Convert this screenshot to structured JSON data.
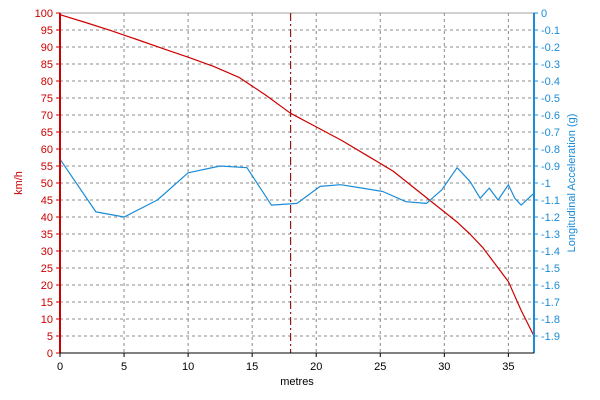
{
  "chart_data": {
    "type": "line",
    "x_axis": {
      "label": "metres",
      "range": [
        0,
        37
      ],
      "ticks": [
        0,
        5,
        10,
        15,
        20,
        25,
        30,
        35
      ],
      "tick_labels": [
        "0",
        "5",
        "10",
        "15",
        "20",
        "25",
        "30",
        "35"
      ]
    },
    "y_left": {
      "label": "km/h",
      "range": [
        0,
        100
      ],
      "ticks": [
        0,
        5,
        10,
        15,
        20,
        25,
        30,
        35,
        40,
        45,
        50,
        55,
        60,
        65,
        70,
        75,
        80,
        85,
        90,
        95,
        100
      ],
      "tick_labels": [
        "0",
        "5",
        "10",
        "15",
        "20",
        "25",
        "30",
        "35",
        "40",
        "45",
        "50",
        "55",
        "60",
        "65",
        "70",
        "75",
        "80",
        "85",
        "90",
        "95",
        "100"
      ],
      "color": "#cc0000"
    },
    "y_right": {
      "label": "Longitudinal Acceleration (g)",
      "range": [
        -2.0,
        0
      ],
      "ticks": [
        0,
        -0.1,
        -0.2,
        -0.3,
        -0.4,
        -0.5,
        -0.6,
        -0.7,
        -0.8,
        -0.9,
        -1,
        -1.1,
        -1.2,
        -1.3,
        -1.4,
        -1.5,
        -1.6,
        -1.7,
        -1.8,
        -1.9
      ],
      "tick_labels": [
        "0",
        "-0.1",
        "-0.2",
        "-0.3",
        "-0.4",
        "-0.5",
        "-0.6",
        "-0.7",
        "-0.8",
        "-0.9",
        "-1",
        "-1.1",
        "-1.2",
        "-1.3",
        "-1.4",
        "-1.5",
        "-1.6",
        "-1.7",
        "-1.8",
        "-1.9"
      ],
      "color": "#1a8cd8"
    },
    "grid": true,
    "marker_line": {
      "x": 18,
      "style": "dash-dot",
      "color": "#8b1a1a"
    },
    "series": [
      {
        "axis": "left",
        "color": "#cc0000",
        "points": [
          [
            0,
            99.5
          ],
          [
            2,
            97.2
          ],
          [
            4,
            94.8
          ],
          [
            6,
            92.2
          ],
          [
            8,
            89.6
          ],
          [
            10,
            87.0
          ],
          [
            12,
            84.3
          ],
          [
            14,
            81.0
          ],
          [
            15,
            78.5
          ],
          [
            16,
            76.0
          ],
          [
            18,
            70.5
          ],
          [
            20,
            66.5
          ],
          [
            22,
            62.5
          ],
          [
            24,
            58.0
          ],
          [
            26,
            53.5
          ],
          [
            28,
            47.5
          ],
          [
            30,
            41.5
          ],
          [
            31,
            38.5
          ],
          [
            32,
            35.0
          ],
          [
            33,
            31.0
          ],
          [
            34,
            26.0
          ],
          [
            35,
            21.0
          ],
          [
            36,
            12.5
          ],
          [
            37,
            5.0
          ]
        ]
      },
      {
        "axis": "right",
        "color": "#1a8cd8",
        "points": [
          [
            0,
            -0.86
          ],
          [
            2.8,
            -1.17
          ],
          [
            5.0,
            -1.2
          ],
          [
            7.6,
            -1.1
          ],
          [
            10.0,
            -0.94
          ],
          [
            12.5,
            -0.9
          ],
          [
            14.6,
            -0.91
          ],
          [
            16.5,
            -1.13
          ],
          [
            18.5,
            -1.12
          ],
          [
            20.3,
            -1.02
          ],
          [
            21.9,
            -1.01
          ],
          [
            23.6,
            -1.03
          ],
          [
            25.2,
            -1.05
          ],
          [
            27.0,
            -1.11
          ],
          [
            28.6,
            -1.12
          ],
          [
            29.8,
            -1.04
          ],
          [
            31.0,
            -0.91
          ],
          [
            32.0,
            -0.99
          ],
          [
            32.8,
            -1.09
          ],
          [
            33.5,
            -1.03
          ],
          [
            34.2,
            -1.1
          ],
          [
            35.0,
            -1.01
          ],
          [
            35.5,
            -1.09
          ],
          [
            36.0,
            -1.13
          ],
          [
            37.0,
            -1.06
          ]
        ]
      }
    ]
  }
}
